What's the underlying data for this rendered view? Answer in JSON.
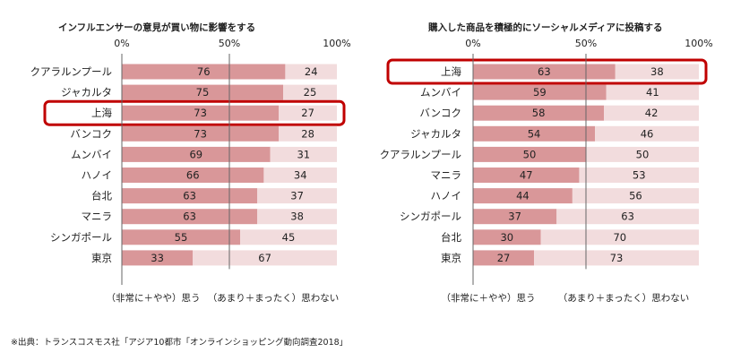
{
  "colors": {
    "agree": "#d99799",
    "disagree": "#f2dcdd",
    "highlight": "#c00000",
    "line": "#666666"
  },
  "charts": [
    {
      "title": "インフルエンサーの意見が買い物に影響をする",
      "ticks": [
        "0%",
        "50%",
        "100%"
      ],
      "agree_note": "（非常に＋やや）思う",
      "disagree_note": "（あまり＋まったく）思わない"
    },
    {
      "title": "購入した商品を積極的にソーシャルメディアに投稿する",
      "ticks": [
        "0%",
        "50%",
        "100%"
      ],
      "agree_note": "（非常に＋やや）思う",
      "disagree_note": "（あまり＋まったく）思わない"
    }
  ],
  "source": "※出典：トランスコスモス社「アジア10都市「オンラインショッピング動向調査2018」",
  "chart_data": [
    {
      "type": "bar",
      "stacked": true,
      "orientation": "horizontal",
      "title": "インフルエンサーの意見が買い物に影響をする",
      "categories": [
        "クアラルンプール",
        "ジャカルタ",
        "上海",
        "バンコク",
        "ムンバイ",
        "ハノイ",
        "台北",
        "マニラ",
        "シンガポール",
        "東京"
      ],
      "series": [
        {
          "name": "（非常に＋やや）思う",
          "values": [
            76,
            75,
            73,
            73,
            69,
            66,
            63,
            63,
            55,
            33
          ]
        },
        {
          "name": "（あまり＋まったく）思わない",
          "values": [
            24,
            25,
            27,
            28,
            31,
            34,
            37,
            38,
            45,
            67
          ]
        }
      ],
      "xlim": [
        0,
        100
      ],
      "tick_labels": [
        "0%",
        "50%",
        "100%"
      ],
      "highlighted_category": "上海",
      "grid": false
    },
    {
      "type": "bar",
      "stacked": true,
      "orientation": "horizontal",
      "title": "購入した商品を積極的にソーシャルメディアに投稿する",
      "categories": [
        "上海",
        "ムンバイ",
        "バンコク",
        "ジャカルタ",
        "クアラルンプール",
        "マニラ",
        "ハノイ",
        "シンガポール",
        "台北",
        "東京"
      ],
      "series": [
        {
          "name": "（非常に＋やや）思う",
          "values": [
            63,
            59,
            58,
            54,
            50,
            47,
            44,
            37,
            30,
            27
          ]
        },
        {
          "name": "（あまり＋まったく）思わない",
          "values": [
            38,
            41,
            42,
            46,
            50,
            53,
            56,
            63,
            70,
            73
          ]
        }
      ],
      "xlim": [
        0,
        100
      ],
      "tick_labels": [
        "0%",
        "50%",
        "100%"
      ],
      "highlighted_category": "上海",
      "grid": false
    }
  ]
}
